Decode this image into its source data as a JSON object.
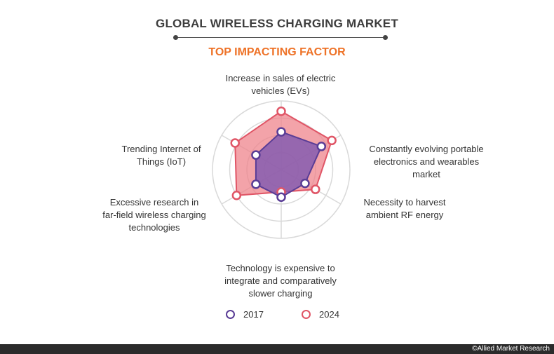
{
  "title": "GLOBAL  WIRELESS CHARGING MARKET",
  "subtitle": "TOP IMPACTING FACTOR",
  "footer": "©Allied Market Research",
  "chart_data": {
    "type": "radar",
    "axes": [
      [
        "Increase in sales of electric",
        "vehicles (EVs)"
      ],
      [
        "Constantly evolving portable",
        "electronics and wearables",
        "market"
      ],
      [
        "Necessity to harvest",
        "ambient RF energy"
      ],
      [
        "Technology is expensive to",
        "integrate and comparatively",
        "slower charging"
      ],
      [
        "Excessive research in",
        "far-field wireless charging",
        "technologies"
      ],
      [
        "Trending Internet of",
        "Things (IoT)"
      ]
    ],
    "rings": 4,
    "range": [
      0,
      4
    ],
    "series": [
      {
        "name": "2017",
        "values": [
          2.2,
          2.7,
          1.6,
          1.6,
          1.7,
          1.7
        ],
        "color": "#5a3d96",
        "fill": "#7e58b0"
      },
      {
        "name": "2024",
        "values": [
          3.4,
          3.4,
          2.3,
          1.3,
          3.0,
          3.1
        ],
        "color": "#e05566",
        "fill": "#ef8088"
      }
    ]
  },
  "colors": {
    "ring": "#d9d9d9",
    "title": "#3d3d3d",
    "subtitle": "#ee7227"
  }
}
